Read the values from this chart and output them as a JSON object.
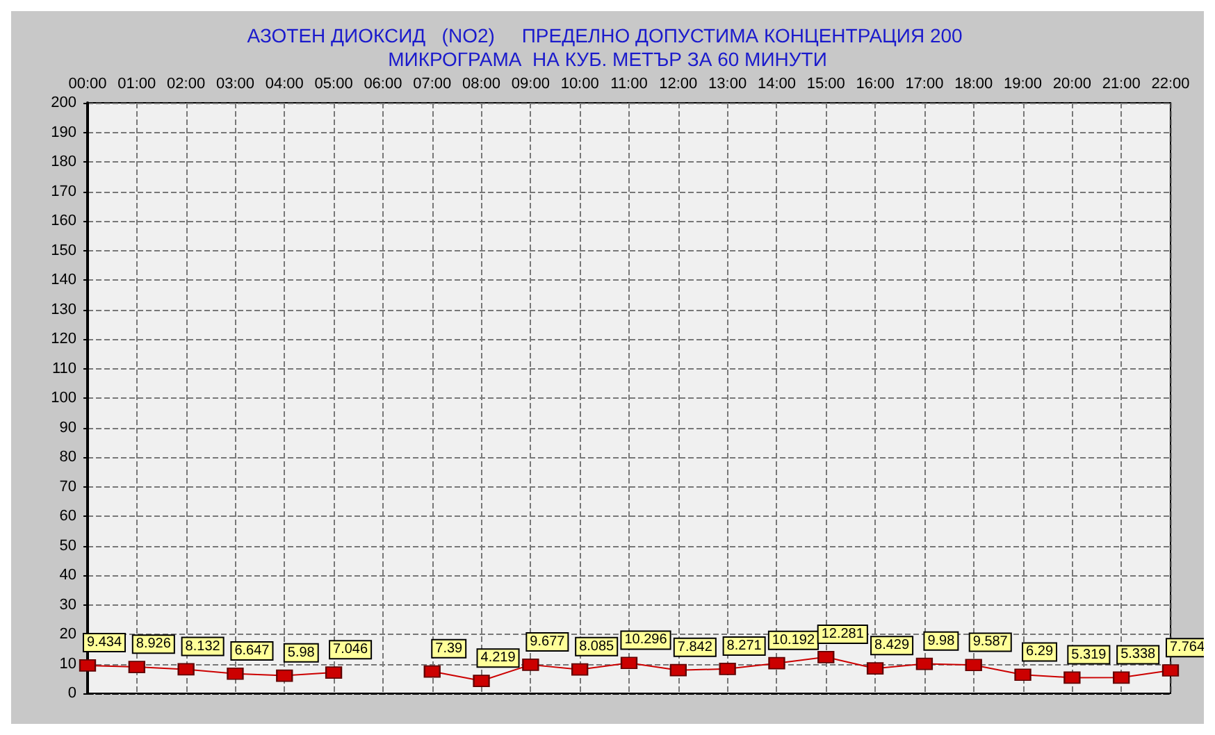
{
  "chart_data": {
    "type": "line",
    "title": "АЗОТЕН ДИОКСИД   (NO2)     ПРЕДЕЛНО ДОПУСТИМА КОНЦЕНТРАЦИЯ 200 МИКРОГРАМА  НА КУБ. МЕТЪР ЗА 60 МИНУТИ",
    "categories": [
      "00:00",
      "01:00",
      "02:00",
      "03:00",
      "04:00",
      "05:00",
      "06:00",
      "07:00",
      "08:00",
      "09:00",
      "10:00",
      "11:00",
      "12:00",
      "13:00",
      "14:00",
      "15:00",
      "16:00",
      "17:00",
      "18:00",
      "19:00",
      "20:00",
      "21:00",
      "22:00"
    ],
    "series": [
      {
        "color": "#cc0000",
        "values": [
          9.434,
          8.926,
          8.132,
          6.647,
          5.98,
          7.046,
          null,
          7.39,
          4.219,
          9.677,
          8.085,
          10.296,
          7.842,
          8.271,
          10.192,
          12.281,
          8.429,
          9.98,
          9.587,
          6.29,
          5.319,
          5.338,
          7.764
        ]
      }
    ],
    "ylim": [
      0,
      200
    ],
    "yticks": [
      0,
      10,
      20,
      30,
      40,
      50,
      60,
      70,
      80,
      90,
      100,
      110,
      120,
      130,
      140,
      150,
      160,
      170,
      180,
      190,
      200
    ],
    "grid": true,
    "marker": "square",
    "data_labels": true
  }
}
